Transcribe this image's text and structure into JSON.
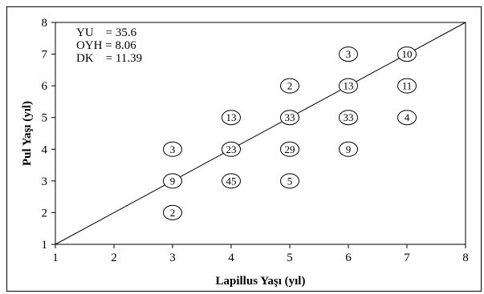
{
  "chart_data": {
    "type": "scatter",
    "title": "",
    "xlabel": "Lapillus  Yaşı (yıl)",
    "ylabel": "Pul Yaşı (yıl)",
    "xlim": [
      1,
      8
    ],
    "ylim": [
      1,
      8
    ],
    "xticks": [
      1,
      2,
      3,
      4,
      5,
      6,
      7,
      8
    ],
    "yticks": [
      1,
      2,
      3,
      4,
      5,
      6,
      7,
      8
    ],
    "grid": false,
    "reference_line": {
      "from": [
        1,
        1
      ],
      "to": [
        8,
        8
      ]
    },
    "stats": [
      "YU    = 35.6",
      "OYH = 8.06",
      "DK    = 11.39"
    ],
    "points": [
      {
        "x": 3,
        "y": 4,
        "n": 3
      },
      {
        "x": 3,
        "y": 3,
        "n": 9
      },
      {
        "x": 3,
        "y": 2,
        "n": 2
      },
      {
        "x": 4,
        "y": 5,
        "n": 13
      },
      {
        "x": 4,
        "y": 4,
        "n": 23
      },
      {
        "x": 4,
        "y": 3,
        "n": 45
      },
      {
        "x": 5,
        "y": 6,
        "n": 2
      },
      {
        "x": 5,
        "y": 5,
        "n": 33
      },
      {
        "x": 5,
        "y": 4,
        "n": 29
      },
      {
        "x": 5,
        "y": 3,
        "n": 5
      },
      {
        "x": 6,
        "y": 7,
        "n": 3
      },
      {
        "x": 6,
        "y": 6,
        "n": 13
      },
      {
        "x": 6,
        "y": 5,
        "n": 33
      },
      {
        "x": 6,
        "y": 4,
        "n": 9
      },
      {
        "x": 7,
        "y": 7,
        "n": 10
      },
      {
        "x": 7,
        "y": 6,
        "n": 11
      },
      {
        "x": 7,
        "y": 5,
        "n": 4
      }
    ]
  }
}
